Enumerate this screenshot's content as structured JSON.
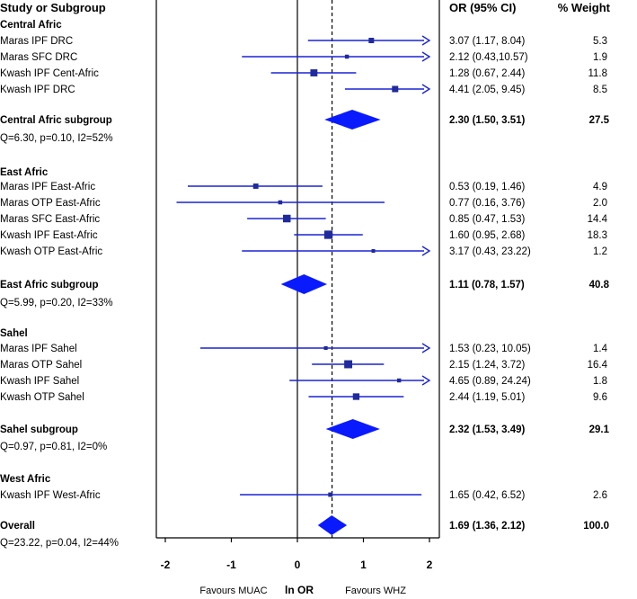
{
  "chart_data": {
    "type": "forest",
    "xlim": [
      -2,
      2
    ],
    "xticks": [
      "-2",
      "-1",
      "0",
      "1",
      "2"
    ],
    "ref_line": 0,
    "overall_line": 0.525,
    "xlabel_left": "Favours MUAC",
    "xlabel_mid": "ln OR",
    "xlabel_right": "Favours WHZ",
    "headers": {
      "study": "Study or Subgroup",
      "or": "OR (95% CI)",
      "weight": "% Weight"
    },
    "groups": [
      {
        "name": "Central Afric",
        "studies": [
          {
            "label": "Maras IPF DRC",
            "est": 1.12,
            "lo": 0.16,
            "hi": 2.09,
            "arrow": true,
            "ci_text": "3.07  (1.17, 8.04)",
            "weight": "5.3"
          },
          {
            "label": "Maras SFC DRC",
            "est": 0.75,
            "lo": -0.84,
            "hi": 2.36,
            "arrow": true,
            "ci_text": "2.12  (0.43,10.57)",
            "weight": "1.9"
          },
          {
            "label": "Kwash IPF Cent-Afric",
            "est": 0.25,
            "lo": -0.4,
            "hi": 0.89,
            "arrow": false,
            "ci_text": "1.28  (0.67, 2.44)",
            "weight": "11.8"
          },
          {
            "label": "Kwash IPF DRC",
            "est": 1.48,
            "lo": 0.72,
            "hi": 2.25,
            "arrow": true,
            "ci_text": "4.41  (2.05, 9.45)",
            "weight": "8.5"
          }
        ],
        "subgroup": {
          "label": "Central Afric subgroup",
          "est": 0.83,
          "lo": 0.41,
          "hi": 1.26,
          "ci_text": "2.30  (1.50, 3.51)",
          "weight": "27.5",
          "het": "Q=6.30, p=0.10, I2=52%"
        }
      },
      {
        "name": "East Afric",
        "studies": [
          {
            "label": "Maras IPF East-Afric",
            "est": -0.63,
            "lo": -1.66,
            "hi": 0.38,
            "arrow": false,
            "ci_text": "0.53  (0.19, 1.46)",
            "weight": "4.9"
          },
          {
            "label": "Maras OTP East-Afric",
            "est": -0.26,
            "lo": -1.83,
            "hi": 1.32,
            "arrow": false,
            "ci_text": "0.77  (0.16, 3.76)",
            "weight": "2.0"
          },
          {
            "label": "Maras SFC East-Afric",
            "est": -0.16,
            "lo": -0.76,
            "hi": 0.43,
            "arrow": false,
            "ci_text": "0.85  (0.47, 1.53)",
            "weight": "14.4"
          },
          {
            "label": "Kwash IPF East-Afric",
            "est": 0.47,
            "lo": -0.05,
            "hi": 0.99,
            "arrow": false,
            "ci_text": "1.60  (0.95, 2.68)",
            "weight": "18.3"
          },
          {
            "label": "Kwash OTP East-Afric",
            "est": 1.15,
            "lo": -0.84,
            "hi": 3.14,
            "arrow": true,
            "ci_text": "3.17  (0.43, 23.22)",
            "weight": "1.2"
          }
        ],
        "subgroup": {
          "label": "East Afric subgroup",
          "est": 0.1,
          "lo": -0.25,
          "hi": 0.45,
          "ci_text": "1.11  (0.78, 1.57)",
          "weight": "40.8",
          "het": "Q=5.99, p=0.20, I2=33%"
        }
      },
      {
        "name": "Sahel",
        "studies": [
          {
            "label": "Maras IPF Sahel",
            "est": 0.43,
            "lo": -1.47,
            "hi": 2.31,
            "arrow": true,
            "ci_text": "1.53  (0.23, 10.05)",
            "weight": "1.4"
          },
          {
            "label": "Maras OTP Sahel",
            "est": 0.77,
            "lo": 0.22,
            "hi": 1.31,
            "arrow": false,
            "ci_text": "2.15  (1.24, 3.72)",
            "weight": "16.4"
          },
          {
            "label": "Kwash IPF Sahel",
            "est": 1.54,
            "lo": -0.12,
            "hi": 3.19,
            "arrow": true,
            "ci_text": "4.65  (0.89, 24.24)",
            "weight": "1.8"
          },
          {
            "label": "Kwash OTP Sahel",
            "est": 0.89,
            "lo": 0.17,
            "hi": 1.61,
            "arrow": false,
            "ci_text": "2.44  (1.19, 5.01)",
            "weight": "9.6"
          }
        ],
        "subgroup": {
          "label": "Sahel subgroup",
          "est": 0.84,
          "lo": 0.43,
          "hi": 1.25,
          "ci_text": "2.32  (1.53, 3.49)",
          "weight": "29.1",
          "het": "Q=0.97, p=0.81, I2=0%"
        }
      },
      {
        "name": "West Afric",
        "studies": [
          {
            "label": "Kwash IPF West-Afric",
            "est": 0.5,
            "lo": -0.87,
            "hi": 1.88,
            "arrow": false,
            "ci_text": "1.65  (0.42, 6.52)",
            "weight": "2.6"
          }
        ]
      }
    ],
    "overall": {
      "label": "Overall",
      "est": 0.52,
      "lo": 0.31,
      "hi": 0.75,
      "ci_text": "1.69  (1.36, 2.12)",
      "weight": "100.0",
      "het": "Q=23.22, p=0.04, I2=44%"
    },
    "colors": {
      "marker": "#1f2a9c",
      "line": "#1a23d6",
      "diamond": "#0a1aff",
      "text": "#111111"
    }
  }
}
